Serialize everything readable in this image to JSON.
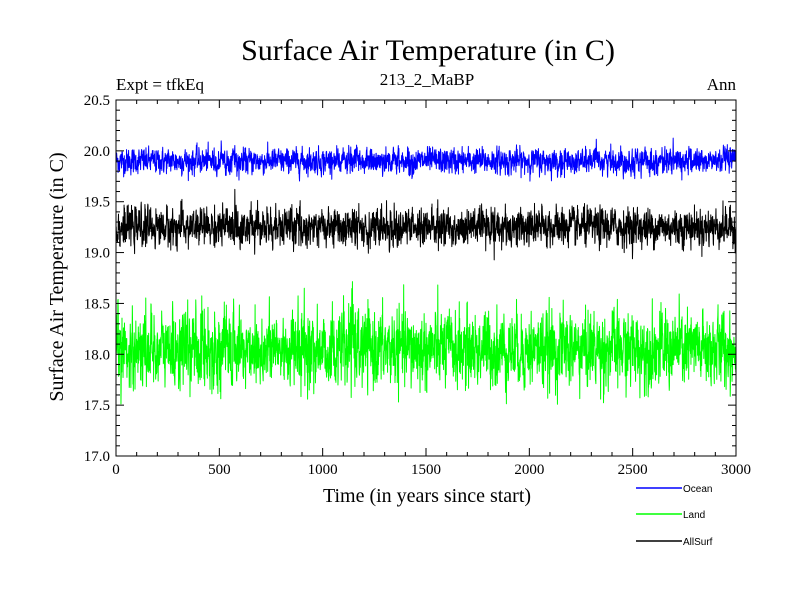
{
  "chart_data": {
    "type": "line",
    "title": "Surface Air Temperature (in C)",
    "subtitle_left": "Expt = tfkEq",
    "subtitle_center": "213_2_MaBP",
    "subtitle_right": "Ann",
    "xlabel": "Time (in years since start)",
    "ylabel": "Surface Air Temperature (in C)",
    "xlim": [
      0,
      3000
    ],
    "ylim": [
      17.0,
      20.5
    ],
    "xticks": [
      "0",
      "500",
      "1000",
      "1500",
      "2000",
      "2500",
      "3000"
    ],
    "yticks": [
      "17.0",
      "17.5",
      "18.0",
      "18.5",
      "19.0",
      "19.5",
      "20.0",
      "20.5"
    ],
    "legend_placement": "bottom-right, outside plot",
    "grid": false,
    "series": [
      {
        "name": "Ocean",
        "color": "#0000ff",
        "mean": 19.9,
        "approx_range": [
          19.7,
          20.2
        ],
        "x_step": 1,
        "x_start": 0,
        "x_end": 3000
      },
      {
        "name": "Land",
        "color": "#00ff00",
        "mean": 18.05,
        "approx_range": [
          17.25,
          18.75
        ],
        "x_step": 1,
        "x_start": 0,
        "x_end": 3000
      },
      {
        "name": "AllSurf",
        "color": "#000000",
        "mean": 19.25,
        "approx_range": [
          18.9,
          19.65
        ],
        "x_step": 1,
        "x_start": 0,
        "x_end": 3000
      }
    ]
  }
}
